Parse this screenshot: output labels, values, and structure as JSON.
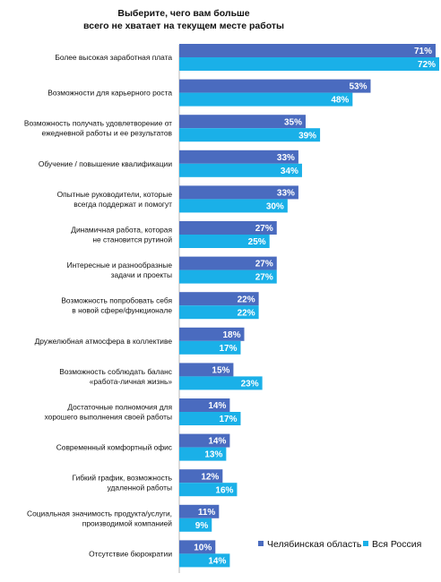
{
  "chart_data": {
    "type": "bar",
    "title_lines": [
      "Выберите, чего вам больше",
      "всего не хватает на текущем месте работы"
    ],
    "categories": [
      [
        "Более высокая заработная плата"
      ],
      [
        "Возможности для карьерного роста"
      ],
      [
        "Возможность получать удовлетворение от",
        "ежедневной работы и ее результатов"
      ],
      [
        "Обучение / повышение квалификации"
      ],
      [
        "Опытные руководители, которые",
        "всегда поддержат и помогут"
      ],
      [
        "Динамичная работа, которая",
        "не становится рутиной"
      ],
      [
        "Интересные и разнообразные",
        "задачи и проекты"
      ],
      [
        "Возможность попробовать себя",
        "в новой сфере/функционале"
      ],
      [
        "Дружелюбная атмосфера в коллективе"
      ],
      [
        "Возможность соблюдать баланс",
        "«работа-личная жизнь»"
      ],
      [
        "Достаточные полномочия для",
        "хорошего выполнения своей работы"
      ],
      [
        "Современный комфортный офис"
      ],
      [
        "Гибкий график, возможность",
        "удаленной работы"
      ],
      [
        "Социальная значимость продукта/услуги,",
        "производимой компанией"
      ],
      [
        "Отсутствие бюрократии"
      ]
    ],
    "series": [
      {
        "name": "Челябинская область",
        "color": "#4a6bbf",
        "values": [
          71,
          53,
          35,
          33,
          33,
          27,
          27,
          22,
          18,
          15,
          14,
          14,
          12,
          11,
          10
        ],
        "labels": [
          "71%",
          "53%",
          "35%",
          "33%",
          "33%",
          "27%",
          "27%",
          "22%",
          "18%",
          "15%",
          "14%",
          "14%",
          "12%",
          "11%",
          "10%"
        ]
      },
      {
        "name": "Вся Россия",
        "color": "#1ab0e8",
        "values": [
          72,
          48,
          39,
          34,
          30,
          25,
          27,
          22,
          17,
          23,
          17,
          13,
          16,
          9,
          14
        ],
        "labels": [
          "72%",
          "48%",
          "39%",
          "34%",
          "30%",
          "25%",
          "27%",
          "22%",
          "17%",
          "23%",
          "17%",
          "13%",
          "16%",
          "9%",
          "14%"
        ]
      }
    ],
    "xlim": [
      0,
      72
    ],
    "legend_position": "bottom-right",
    "grid": false
  }
}
